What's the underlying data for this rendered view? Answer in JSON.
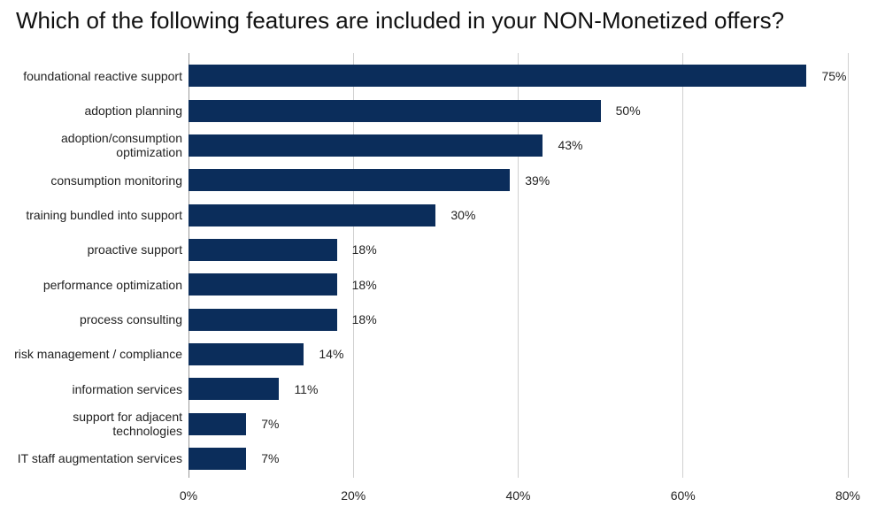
{
  "chart_data": {
    "type": "bar",
    "orientation": "horizontal",
    "title": "Which of the following features are included in your NON-Monetized offers?",
    "categories": [
      "foundational reactive support",
      "adoption planning",
      "adoption/consumption optimization",
      "consumption monitoring",
      "training bundled into support",
      "proactive support",
      "performance optimization",
      "process consulting",
      "risk management / compliance",
      "information services",
      "support for adjacent technologies",
      "IT staff augmentation services"
    ],
    "values": [
      75,
      50,
      43,
      39,
      30,
      18,
      18,
      18,
      14,
      11,
      7,
      7
    ],
    "value_labels": [
      "75%",
      "50%",
      "43%",
      "39%",
      "30%",
      "18%",
      "18%",
      "18%",
      "14%",
      "11%",
      "7%",
      "7%"
    ],
    "color": "#0b2d5b",
    "xlim": [
      0,
      80
    ],
    "xticks": [
      {
        "value": 0,
        "label": "0%"
      },
      {
        "value": 20,
        "label": "20%"
      },
      {
        "value": 40,
        "label": "40%"
      },
      {
        "value": 60,
        "label": "60%"
      },
      {
        "value": 80,
        "label": "80%"
      }
    ],
    "grid": true
  }
}
